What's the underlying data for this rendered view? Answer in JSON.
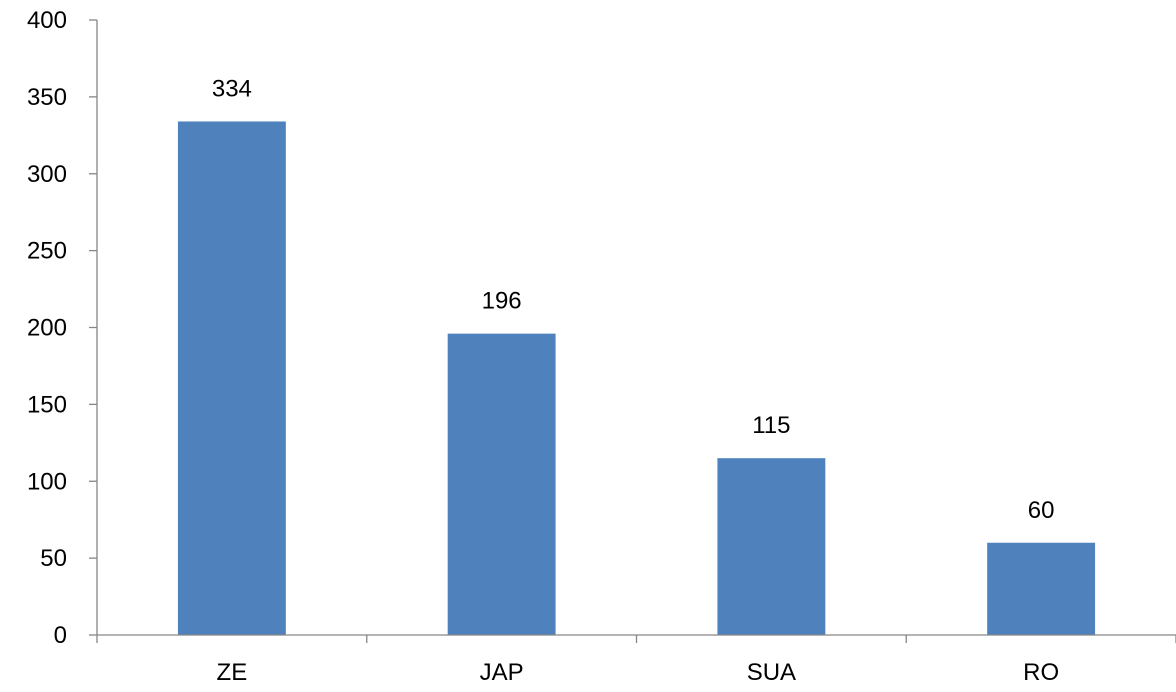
{
  "chart_data": {
    "type": "bar",
    "categories": [
      "ZE",
      "JAP",
      "SUA",
      "RO"
    ],
    "values": [
      334,
      196,
      115,
      60
    ],
    "data_labels": [
      "334",
      "196",
      "115",
      "60"
    ],
    "title": "",
    "xlabel": "",
    "ylabel": "",
    "ylim": [
      0,
      400
    ],
    "yticks": [
      0,
      50,
      100,
      150,
      200,
      250,
      300,
      350,
      400
    ],
    "ytick_labels": [
      "0",
      "50",
      "100",
      "150",
      "200",
      "250",
      "300",
      "350",
      "400"
    ],
    "grid": false,
    "legend": "none",
    "bar_color": "#4F81BD"
  }
}
